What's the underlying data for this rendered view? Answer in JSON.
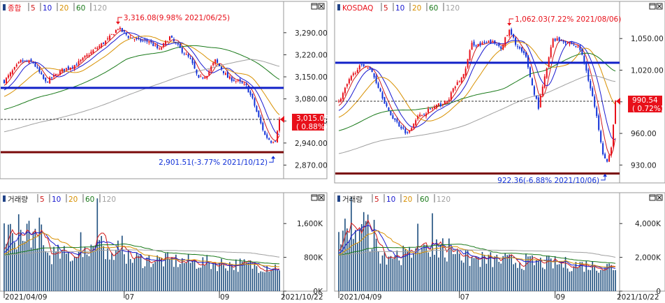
{
  "colors": {
    "up": "#e8101a",
    "down": "#1030d8",
    "volume": "#1f4f7f",
    "ma5": "#d01818",
    "ma10": "#1818d0",
    "ma20": "#d89000",
    "ma60": "#1a7a1a",
    "ma120": "#a0a0a0",
    "hline_blue": "#1020c8",
    "hline_dark": "#7a0a0a",
    "price_box": "#e8101a",
    "panel_border": "#9a9a9a",
    "annot_red": "#e8101a",
    "annot_blue": "#1030d8"
  },
  "legend_ma": [
    {
      "label": "5",
      "color": "#d01818"
    },
    {
      "label": "10",
      "color": "#1818d0"
    },
    {
      "label": "20",
      "color": "#d89000"
    },
    {
      "label": "60",
      "color": "#1a7a1a"
    },
    {
      "label": "120",
      "color": "#a0a0a0"
    }
  ],
  "window_buttons": {
    "restore": "□",
    "close": "x"
  },
  "chart_data": [
    {
      "type": "candlestick",
      "name": "종합",
      "ylim": [
        2840,
        3345
      ],
      "y_ticks": [
        {
          "value": 2870,
          "label": "2,870.00"
        },
        {
          "value": 2940,
          "label": "2,940.00"
        },
        {
          "value": 3010,
          "label": "3,010.00"
        },
        {
          "value": 3080,
          "label": "3,080.00"
        },
        {
          "value": 3150,
          "label": "3,150.00"
        },
        {
          "value": 3220,
          "label": "3,220.00"
        },
        {
          "value": 3290,
          "label": "3,290.00"
        }
      ],
      "last_price": {
        "value": 3015.06,
        "label": "3,015.06",
        "change": "( 0.88%)"
      },
      "hlines": [
        {
          "value": 3115,
          "color": "#1020c8"
        },
        {
          "value": 2911,
          "color": "#7a0a0a"
        }
      ],
      "annotations": [
        {
          "text": "3,316.08(9.98% 2021/06/25)",
          "bar": 55,
          "value": 3316.08,
          "kind": "max"
        },
        {
          "text": "2,901.51(-3.77% 2021/10/12)",
          "bar": 130,
          "value": 2901.51,
          "kind": "min"
        }
      ],
      "bars": 134,
      "anchors": [
        [
          0,
          3136
        ],
        [
          8,
          3200
        ],
        [
          14,
          3195
        ],
        [
          20,
          3132
        ],
        [
          28,
          3171
        ],
        [
          35,
          3190
        ],
        [
          42,
          3228
        ],
        [
          50,
          3268
        ],
        [
          55,
          3305
        ],
        [
          60,
          3278
        ],
        [
          65,
          3265
        ],
        [
          70,
          3262
        ],
        [
          75,
          3235
        ],
        [
          80,
          3276
        ],
        [
          86,
          3232
        ],
        [
          90,
          3205
        ],
        [
          94,
          3142
        ],
        [
          98,
          3158
        ],
        [
          102,
          3202
        ],
        [
          108,
          3148
        ],
        [
          113,
          3135
        ],
        [
          117,
          3120
        ],
        [
          120,
          3078
        ],
        [
          123,
          3020
        ],
        [
          126,
          2965
        ],
        [
          129,
          2945
        ],
        [
          131,
          2950
        ],
        [
          133,
          3015.06
        ]
      ],
      "vol_ylim": [
        0,
        2000
      ],
      "vol_ticks": [
        {
          "value": 0,
          "label": "0K"
        },
        {
          "value": 800,
          "label": "800K"
        },
        {
          "value": 1600,
          "label": "1,600K"
        }
      ],
      "volume_title": "거래량",
      "x_labels": [
        {
          "bar": 0,
          "label": "2021/04/09"
        },
        {
          "bar": 58,
          "label": "07"
        },
        {
          "bar": 104,
          "label": "09"
        }
      ],
      "x_end_label": "2021/10/22"
    },
    {
      "type": "candlestick",
      "name": "KOSDAQ",
      "ylim": [
        917,
        1072
      ],
      "y_ticks": [
        {
          "value": 930,
          "label": "930.00"
        },
        {
          "value": 960,
          "label": "960.00"
        },
        {
          "value": 990,
          "label": "990.00"
        },
        {
          "value": 1020,
          "label": "1,020.00"
        },
        {
          "value": 1050,
          "label": "1,050.00"
        }
      ],
      "last_price": {
        "value": 990.54,
        "label": "990.54",
        "change": "( 0.72%)"
      },
      "hlines": [
        {
          "value": 1027,
          "color": "#1020c8"
        },
        {
          "value": 922,
          "color": "#7a0a0a"
        }
      ],
      "annotations": [
        {
          "text": "1,062.03(7.22% 2021/08/06)",
          "bar": 82,
          "value": 1062.03,
          "kind": "max"
        },
        {
          "text": "922.36(-6.88% 2021/10/06)",
          "bar": 128,
          "value": 922.36,
          "kind": "min"
        }
      ],
      "bars": 134,
      "anchors": [
        [
          0,
          990
        ],
        [
          5,
          1010
        ],
        [
          9,
          1022
        ],
        [
          13,
          1025
        ],
        [
          16,
          1018
        ],
        [
          20,
          1000
        ],
        [
          24,
          980
        ],
        [
          29,
          968
        ],
        [
          33,
          960
        ],
        [
          37,
          974
        ],
        [
          43,
          982
        ],
        [
          47,
          986
        ],
        [
          52,
          990
        ],
        [
          56,
          1005
        ],
        [
          60,
          1015
        ],
        [
          64,
          1045
        ],
        [
          68,
          1044
        ],
        [
          73,
          1047
        ],
        [
          78,
          1042
        ],
        [
          82,
          1057
        ],
        [
          86,
          1042
        ],
        [
          90,
          1032
        ],
        [
          93,
          1005
        ],
        [
          96,
          985
        ],
        [
          100,
          1022
        ],
        [
          103,
          1050
        ],
        [
          108,
          1048
        ],
        [
          113,
          1044
        ],
        [
          116,
          1040
        ],
        [
          119,
          1020
        ],
        [
          122,
          995
        ],
        [
          125,
          965
        ],
        [
          127,
          942
        ],
        [
          129,
          933
        ],
        [
          131,
          945
        ],
        [
          133,
          990.54
        ]
      ],
      "vol_ylim": [
        0,
        5000
      ],
      "vol_ticks": [
        {
          "value": 0,
          "label": "0"
        },
        {
          "value": 2000,
          "label": "2,000K"
        },
        {
          "value": 4000,
          "label": "4,000K"
        }
      ],
      "volume_title": "거래량",
      "x_labels": [
        {
          "bar": 0,
          "label": "2021/04/09"
        },
        {
          "bar": 58,
          "label": "07"
        },
        {
          "bar": 104,
          "label": "09"
        }
      ],
      "x_end_label": "2021/10/22"
    }
  ]
}
